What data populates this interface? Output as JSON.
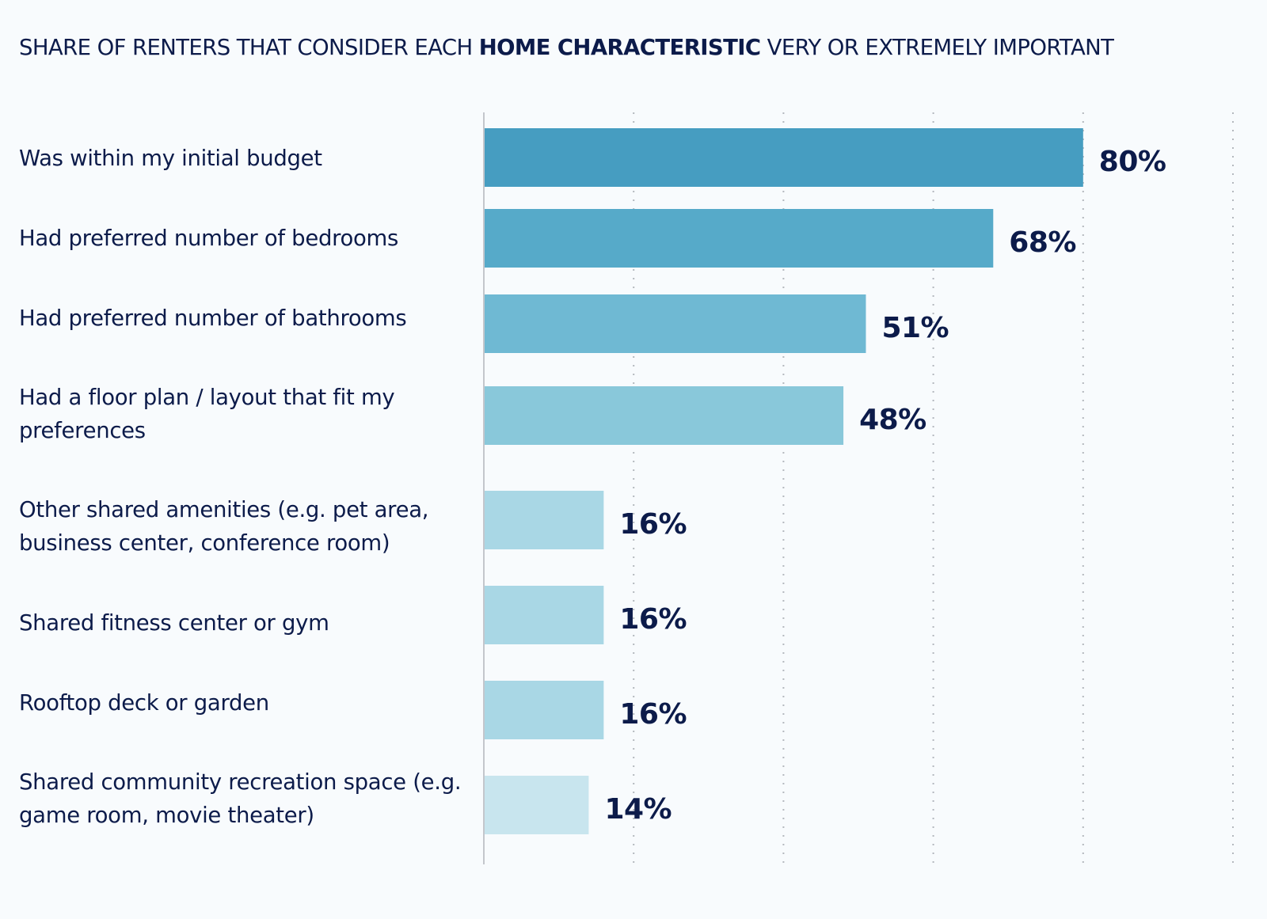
{
  "chart_data": {
    "type": "bar",
    "orientation": "horizontal",
    "title": {
      "prefix": "SHARE OF RENTERS THAT CONSIDER EACH ",
      "emphasis": "HOME CHARACTERISTIC",
      "suffix": " VERY OR EXTREMELY IMPORTANT"
    },
    "categories": [
      "Was within my initial budget",
      "Had preferred number of bedrooms",
      "Had preferred number of bathrooms",
      "Had a floor plan / layout that fit my preferences",
      "Other shared amenities (e.g. pet area, business center, conference room)",
      "Shared fitness center or gym",
      "Rooftop deck or garden",
      "Shared community recreation space (e.g. game room, movie theater)"
    ],
    "values": [
      80,
      68,
      51,
      48,
      16,
      16,
      16,
      14
    ],
    "value_labels": [
      "80%",
      "68%",
      "51%",
      "48%",
      "16%",
      "16%",
      "16%",
      "14%"
    ],
    "bar_colors": [
      "#469dc1",
      "#56aac9",
      "#6fb9d3",
      "#89c8da",
      "#a9d7e5",
      "#a9d7e5",
      "#a9d7e5",
      "#c8e5ee"
    ],
    "xlim": [
      0,
      100
    ],
    "gridlines": [
      20,
      40,
      60,
      80,
      100
    ],
    "xlabel": "",
    "ylabel": "",
    "colors": {
      "text": "#0c1b4a",
      "axis": "#c3c6cc",
      "grid": "#b4b8be",
      "background": "#f8fbfd"
    }
  }
}
